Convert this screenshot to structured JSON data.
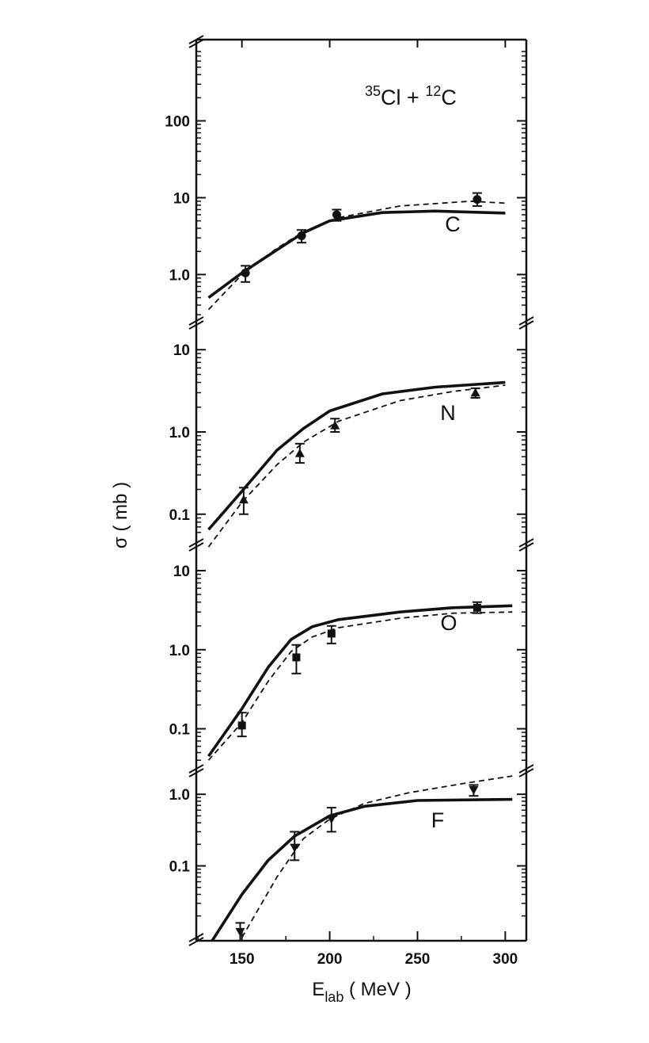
{
  "chart_data": {
    "type": "scatter",
    "title": [
      "35",
      "Cl + ",
      "12",
      "C"
    ],
    "ylabel": "σ ( mb )",
    "xlabel": {
      "main": "E",
      "sub": "lab",
      "unit": " ( MeV )"
    },
    "xlim": [
      124,
      312
    ],
    "x_ticks": [
      150,
      200,
      250,
      300
    ],
    "x_tick_labels": [
      "150",
      "200",
      "250",
      "300"
    ],
    "y_scale": "log",
    "colors": {
      "ink": "#111111",
      "background": "#ffffff"
    },
    "panels": [
      {
        "label": "C",
        "ylim": [
          0.28,
          900
        ],
        "y_ticks": [
          1.0,
          10,
          100
        ],
        "y_tick_labels": [
          "1.0",
          "10",
          "100"
        ],
        "points": [
          {
            "x": 152,
            "y": 1.05,
            "err_low": 0.8,
            "err_high": 1.3,
            "marker": "circle"
          },
          {
            "x": 184,
            "y": 3.2,
            "err_low": 2.6,
            "err_high": 3.8,
            "marker": "circle"
          },
          {
            "x": 204,
            "y": 6.0,
            "err_low": 5.0,
            "err_high": 7.0,
            "marker": "circle"
          },
          {
            "x": 284,
            "y": 9.5,
            "err_low": 7.8,
            "err_high": 11.5,
            "marker": "circle"
          }
        ],
        "solid": [
          [
            131,
            0.5
          ],
          [
            150,
            1.05
          ],
          [
            170,
            2.1
          ],
          [
            185,
            3.5
          ],
          [
            200,
            5.0
          ],
          [
            230,
            6.4
          ],
          [
            260,
            6.7
          ],
          [
            300,
            6.3
          ]
        ],
        "dashed": [
          [
            131,
            0.35
          ],
          [
            150,
            1.0
          ],
          [
            170,
            2.2
          ],
          [
            185,
            3.6
          ],
          [
            205,
            5.5
          ],
          [
            240,
            7.8
          ],
          [
            280,
            9.0
          ],
          [
            300,
            8.5
          ]
        ]
      },
      {
        "label": "N",
        "ylim": [
          0.05,
          20
        ],
        "y_ticks": [
          0.1,
          1.0,
          10
        ],
        "y_tick_labels": [
          "0.1",
          "1.0",
          "10"
        ],
        "points": [
          {
            "x": 151,
            "y": 0.15,
            "err_low": 0.1,
            "err_high": 0.21,
            "marker": "triangle-up"
          },
          {
            "x": 183,
            "y": 0.55,
            "err_low": 0.42,
            "err_high": 0.72,
            "marker": "triangle-up"
          },
          {
            "x": 203,
            "y": 1.2,
            "err_low": 1.0,
            "err_high": 1.45,
            "marker": "triangle-up"
          },
          {
            "x": 283,
            "y": 3.0,
            "err_low": 2.6,
            "err_high": 3.4,
            "marker": "triangle-up"
          }
        ],
        "solid": [
          [
            131,
            0.065
          ],
          [
            150,
            0.19
          ],
          [
            170,
            0.6
          ],
          [
            185,
            1.1
          ],
          [
            200,
            1.8
          ],
          [
            230,
            2.9
          ],
          [
            260,
            3.5
          ],
          [
            300,
            4.0
          ]
        ],
        "dashed": [
          [
            131,
            0.04
          ],
          [
            150,
            0.14
          ],
          [
            170,
            0.4
          ],
          [
            185,
            0.75
          ],
          [
            205,
            1.35
          ],
          [
            240,
            2.4
          ],
          [
            270,
            3.1
          ],
          [
            300,
            3.7
          ]
        ]
      },
      {
        "label": "O",
        "ylim": [
          0.035,
          20
        ],
        "y_ticks": [
          0.1,
          1.0,
          10
        ],
        "y_tick_labels": [
          "0.1",
          "1.0",
          "10"
        ],
        "points": [
          {
            "x": 150,
            "y": 0.11,
            "err_low": 0.08,
            "err_high": 0.16,
            "marker": "square"
          },
          {
            "x": 181,
            "y": 0.8,
            "err_low": 0.5,
            "err_high": 1.15,
            "marker": "square"
          },
          {
            "x": 201,
            "y": 1.6,
            "err_low": 1.2,
            "err_high": 2.0,
            "marker": "square"
          },
          {
            "x": 284,
            "y": 3.4,
            "err_low": 2.9,
            "err_high": 4.0,
            "marker": "square"
          }
        ],
        "solid": [
          [
            131,
            0.045
          ],
          [
            150,
            0.18
          ],
          [
            165,
            0.6
          ],
          [
            178,
            1.35
          ],
          [
            190,
            1.95
          ],
          [
            205,
            2.4
          ],
          [
            240,
            3.0
          ],
          [
            270,
            3.4
          ],
          [
            304,
            3.6
          ]
        ],
        "dashed": [
          [
            131,
            0.04
          ],
          [
            150,
            0.12
          ],
          [
            165,
            0.4
          ],
          [
            178,
            0.95
          ],
          [
            190,
            1.45
          ],
          [
            205,
            1.9
          ],
          [
            240,
            2.5
          ],
          [
            270,
            2.9
          ],
          [
            304,
            3.0
          ]
        ]
      },
      {
        "label": "F",
        "ylim": [
          0.009,
          2.0
        ],
        "y_ticks": [
          0.1,
          1.0
        ],
        "y_tick_labels": [
          "0.1",
          "1.0"
        ],
        "points": [
          {
            "x": 149,
            "y": 0.012,
            "err_low": 0.009,
            "err_high": 0.016,
            "marker": "triangle-down"
          },
          {
            "x": 180,
            "y": 0.18,
            "err_low": 0.12,
            "err_high": 0.3,
            "marker": "triangle-down"
          },
          {
            "x": 201,
            "y": 0.45,
            "err_low": 0.3,
            "err_high": 0.65,
            "marker": "triangle-down"
          },
          {
            "x": 282,
            "y": 1.15,
            "err_low": 0.95,
            "err_high": 1.35,
            "marker": "triangle-down"
          }
        ],
        "solid": [
          [
            133,
            0.009
          ],
          [
            150,
            0.04
          ],
          [
            165,
            0.12
          ],
          [
            180,
            0.26
          ],
          [
            200,
            0.5
          ],
          [
            220,
            0.68
          ],
          [
            250,
            0.82
          ],
          [
            304,
            0.85
          ]
        ],
        "dashed": [
          [
            150,
            0.01
          ],
          [
            170,
            0.07
          ],
          [
            185,
            0.24
          ],
          [
            200,
            0.45
          ],
          [
            220,
            0.75
          ],
          [
            245,
            1.05
          ],
          [
            275,
            1.4
          ],
          [
            304,
            1.8
          ]
        ]
      }
    ]
  }
}
